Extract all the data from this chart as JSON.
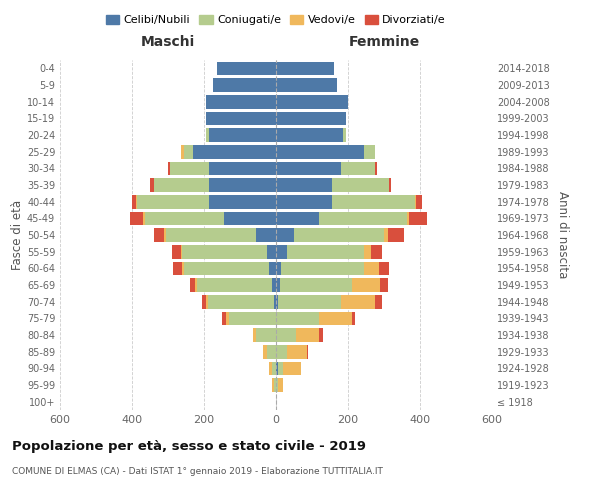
{
  "age_groups": [
    "100+",
    "95-99",
    "90-94",
    "85-89",
    "80-84",
    "75-79",
    "70-74",
    "65-69",
    "60-64",
    "55-59",
    "50-54",
    "45-49",
    "40-44",
    "35-39",
    "30-34",
    "25-29",
    "20-24",
    "15-19",
    "10-14",
    "5-9",
    "0-4"
  ],
  "birth_years": [
    "≤ 1918",
    "1919-1923",
    "1924-1928",
    "1929-1933",
    "1934-1938",
    "1939-1943",
    "1944-1948",
    "1949-1953",
    "1954-1958",
    "1959-1963",
    "1964-1968",
    "1969-1973",
    "1974-1978",
    "1979-1983",
    "1984-1988",
    "1989-1993",
    "1994-1998",
    "1999-2003",
    "2004-2008",
    "2009-2013",
    "2014-2018"
  ],
  "males": {
    "celibi": [
      0,
      0,
      0,
      0,
      0,
      0,
      5,
      10,
      20,
      25,
      55,
      145,
      185,
      185,
      185,
      230,
      185,
      195,
      195,
      175,
      165
    ],
    "coniugati": [
      0,
      5,
      10,
      25,
      55,
      130,
      185,
      210,
      235,
      235,
      250,
      220,
      200,
      155,
      110,
      25,
      10,
      0,
      0,
      0,
      0
    ],
    "vedovi": [
      0,
      5,
      10,
      10,
      10,
      10,
      5,
      5,
      5,
      5,
      5,
      5,
      5,
      0,
      0,
      10,
      0,
      0,
      0,
      0,
      0
    ],
    "divorziati": [
      0,
      0,
      0,
      0,
      0,
      10,
      10,
      15,
      25,
      25,
      30,
      35,
      10,
      10,
      5,
      0,
      0,
      0,
      0,
      0,
      0
    ]
  },
  "females": {
    "nubili": [
      0,
      0,
      5,
      0,
      0,
      0,
      5,
      10,
      15,
      30,
      50,
      120,
      155,
      155,
      180,
      245,
      185,
      195,
      200,
      170,
      160
    ],
    "coniugate": [
      0,
      5,
      15,
      30,
      55,
      120,
      175,
      200,
      230,
      215,
      250,
      245,
      230,
      160,
      95,
      30,
      10,
      0,
      0,
      0,
      0
    ],
    "vedove": [
      0,
      15,
      50,
      55,
      65,
      90,
      95,
      80,
      40,
      20,
      10,
      5,
      5,
      0,
      0,
      0,
      0,
      0,
      0,
      0,
      0
    ],
    "divorziate": [
      0,
      0,
      0,
      5,
      10,
      10,
      20,
      20,
      30,
      30,
      45,
      50,
      15,
      5,
      5,
      0,
      0,
      0,
      0,
      0,
      0
    ]
  },
  "colors": {
    "celibi": "#4e79a7",
    "coniugati": "#b5cc8e",
    "vedovi": "#f0b85c",
    "divorziati": "#d94f3d"
  },
  "title": "Popolazione per età, sesso e stato civile - 2019",
  "subtitle": "COMUNE DI ELMAS (CA) - Dati ISTAT 1° gennaio 2019 - Elaborazione TUTTITALIA.IT",
  "xlabel_left": "Maschi",
  "xlabel_right": "Femmine",
  "ylabel_left": "Fasce di età",
  "ylabel_right": "Anni di nascita",
  "xlim": 600,
  "legend_labels": [
    "Celibi/Nubili",
    "Coniugati/e",
    "Vedovi/e",
    "Divorziati/e"
  ],
  "background_color": "#ffffff",
  "grid_color": "#cccccc"
}
